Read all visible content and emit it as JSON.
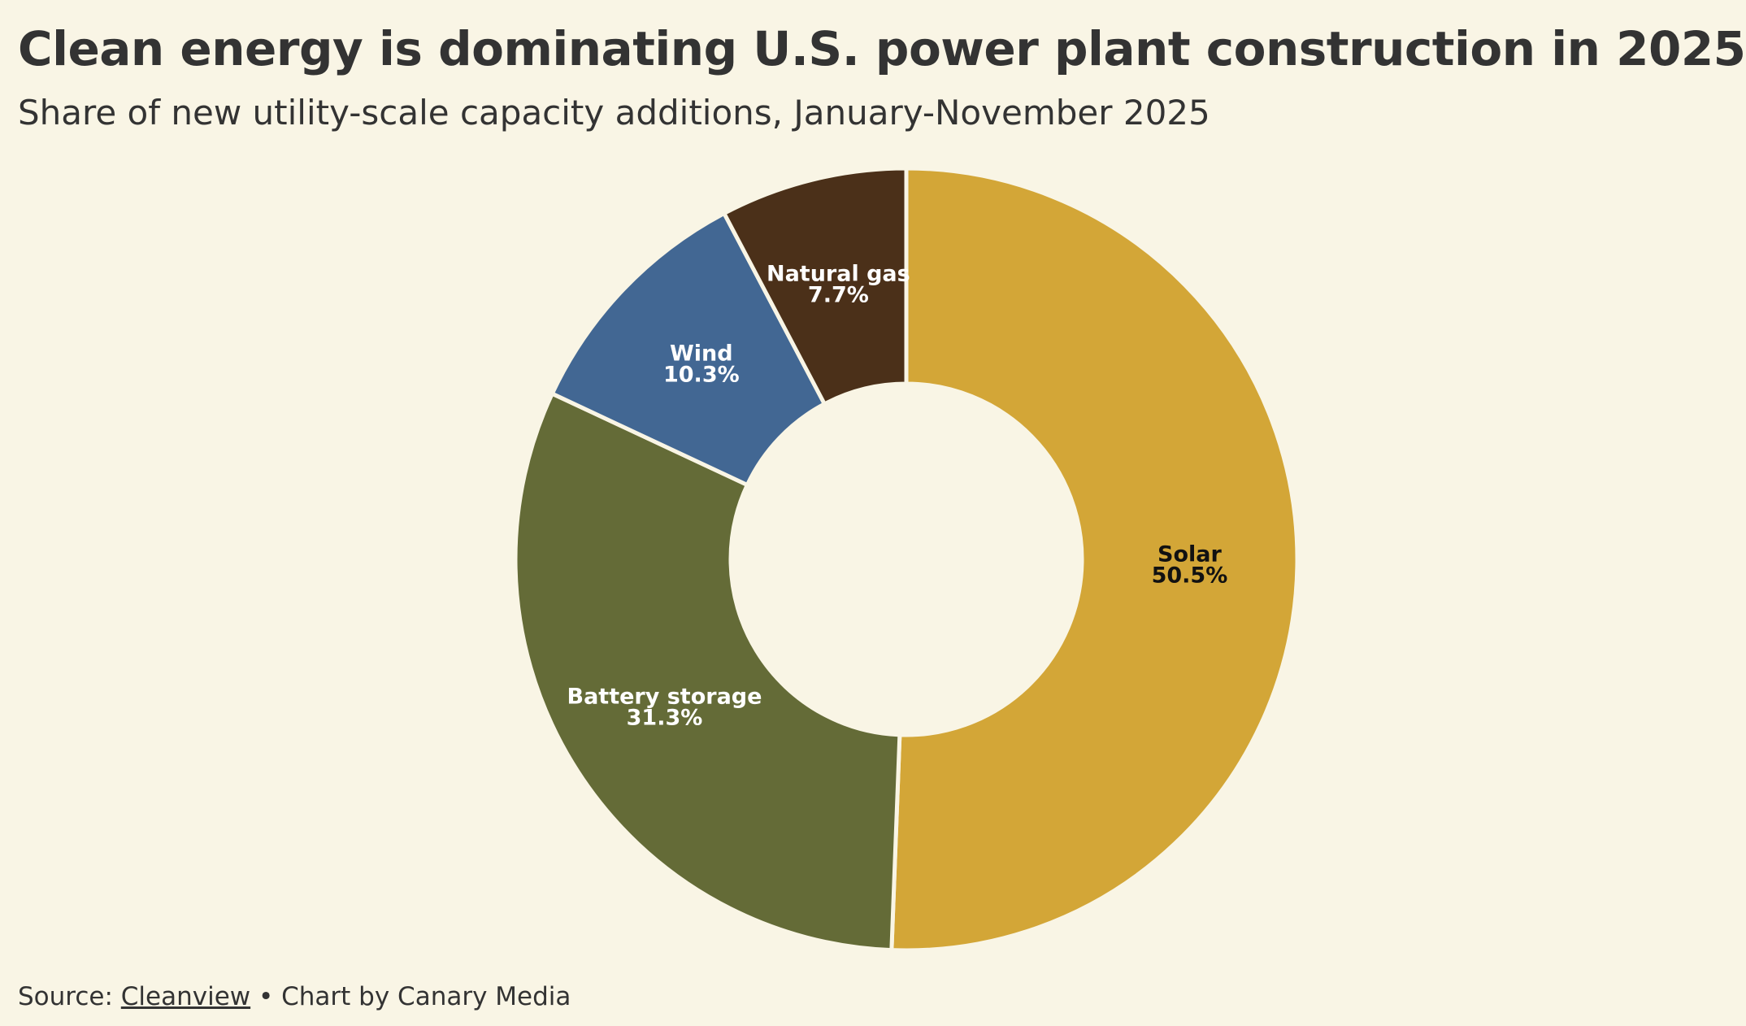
{
  "header": {
    "title": "Clean energy is dominating U.S. power plant construction in 2025",
    "subtitle": "Share of new utility-scale capacity additions, January-November 2025"
  },
  "footer": {
    "source_prefix": "Source: ",
    "source_link": "Cleanview",
    "credit": " • Chart by Canary Media"
  },
  "chart_data": {
    "type": "pie",
    "variant": "donut",
    "title": "Clean energy is dominating U.S. power plant construction in 2025",
    "subtitle": "Share of new utility-scale capacity additions, January-November 2025",
    "unit": "%",
    "legend": "none",
    "slices": [
      {
        "name": "Solar",
        "label": "50.5%",
        "value": 50.5,
        "color": "#d3a637",
        "text_color": "#111111"
      },
      {
        "name": "Battery storage",
        "label": "31.3%",
        "value": 31.3,
        "color": "#646b37",
        "text_color": "#ffffff"
      },
      {
        "name": "Wind",
        "label": "10.3%",
        "value": 10.3,
        "color": "#426793",
        "text_color": "#ffffff"
      },
      {
        "name": "Natural gas",
        "label": "7.7%",
        "value": 7.7,
        "color": "#4b3019",
        "text_color": "#ffffff"
      }
    ],
    "separator_color": "#f9f5e5"
  }
}
